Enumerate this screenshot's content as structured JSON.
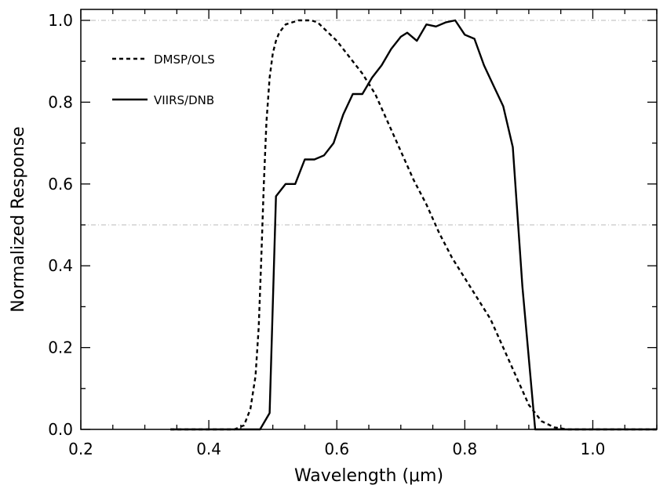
{
  "chart_data": {
    "type": "line",
    "xlabel": "Wavelength (μm)",
    "ylabel": "Normalized Response",
    "xlim": [
      0.2,
      1.1
    ],
    "ylim": [
      0.0,
      1.0
    ],
    "xticks": [
      "0.2",
      "0.4",
      "0.6",
      "0.8",
      "1.0"
    ],
    "yticks": [
      "0.0",
      "0.2",
      "0.4",
      "0.6",
      "0.8",
      "1.0"
    ],
    "x_minor_step": 0.05,
    "y_minor_step": 0.1,
    "reference_lines_y": [
      0.5,
      1.0
    ],
    "grid": false,
    "legend_position": "top-left",
    "series": [
      {
        "name": "DMSP/OLS",
        "style": "dashed",
        "x": [
          0.34,
          0.44,
          0.455,
          0.465,
          0.473,
          0.478,
          0.482,
          0.486,
          0.49,
          0.495,
          0.5,
          0.505,
          0.51,
          0.52,
          0.53,
          0.54,
          0.55,
          0.56,
          0.57,
          0.58,
          0.6,
          0.62,
          0.64,
          0.66,
          0.68,
          0.7,
          0.72,
          0.74,
          0.76,
          0.78,
          0.8,
          0.82,
          0.84,
          0.86,
          0.88,
          0.9,
          0.92,
          0.94,
          0.96,
          1.1
        ],
        "y": [
          0.0,
          0.0,
          0.01,
          0.05,
          0.13,
          0.25,
          0.42,
          0.6,
          0.75,
          0.86,
          0.92,
          0.95,
          0.97,
          0.99,
          0.995,
          1.0,
          1.0,
          1.0,
          0.995,
          0.98,
          0.95,
          0.91,
          0.87,
          0.82,
          0.75,
          0.68,
          0.61,
          0.55,
          0.48,
          0.42,
          0.37,
          0.32,
          0.27,
          0.2,
          0.13,
          0.06,
          0.02,
          0.005,
          0.0,
          0.0
        ]
      },
      {
        "name": "VIIRS/DNB",
        "style": "solid",
        "x": [
          0.34,
          0.48,
          0.495,
          0.505,
          0.52,
          0.535,
          0.55,
          0.565,
          0.58,
          0.595,
          0.61,
          0.625,
          0.64,
          0.655,
          0.67,
          0.685,
          0.7,
          0.71,
          0.725,
          0.74,
          0.755,
          0.77,
          0.785,
          0.8,
          0.815,
          0.83,
          0.845,
          0.86,
          0.875,
          0.89,
          0.91,
          1.1
        ],
        "y": [
          0.0,
          0.0,
          0.04,
          0.57,
          0.6,
          0.6,
          0.66,
          0.66,
          0.67,
          0.7,
          0.77,
          0.82,
          0.82,
          0.86,
          0.89,
          0.93,
          0.96,
          0.97,
          0.95,
          0.99,
          0.985,
          0.995,
          1.0,
          0.965,
          0.955,
          0.89,
          0.84,
          0.79,
          0.69,
          0.35,
          0.0,
          0.0
        ]
      }
    ]
  },
  "colors": {
    "line": "#000000",
    "reference_line": "#b8b8b8",
    "background": "#ffffff"
  }
}
